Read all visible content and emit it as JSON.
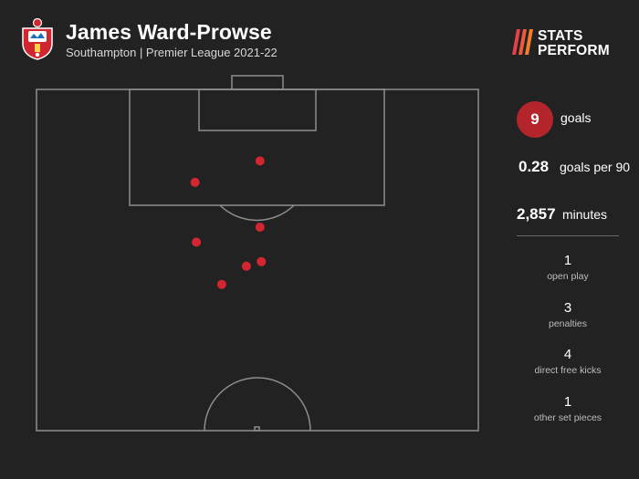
{
  "header": {
    "player_name": "James Ward-Prowse",
    "subtitle": "Southampton | Premier League 2021-22",
    "brand_line1": "STATS",
    "brand_line2": "PERFORM"
  },
  "stats": {
    "goals_value": "9",
    "goals_label": "goals",
    "per90_value": "0.28",
    "per90_label": "goals per 90",
    "minutes_value": "2,857",
    "minutes_label": "minutes"
  },
  "breakdown": [
    {
      "count": "1",
      "label": "open play"
    },
    {
      "count": "3",
      "label": "penalties"
    },
    {
      "count": "4",
      "label": "direct free kicks"
    },
    {
      "count": "1",
      "label": "other set pieces"
    }
  ],
  "colors": {
    "background": "#232222",
    "accent": "#b3242b",
    "shot_dot": "#d42630",
    "pitch_line": "#8e8e8e"
  },
  "chart_data": {
    "type": "scatter",
    "pitch": {
      "width_m": 68,
      "length_m": 52.5,
      "orientation": "attacking-up"
    },
    "x_axis": "pitch width in metres from left touchline",
    "y_axis": "distance from goal line in metres",
    "points": [
      {
        "x": 34.4,
        "y": 11.0
      },
      {
        "x": 24.4,
        "y": 14.3
      },
      {
        "x": 34.4,
        "y": 21.2
      },
      {
        "x": 24.6,
        "y": 23.5
      },
      {
        "x": 34.6,
        "y": 26.5
      },
      {
        "x": 32.3,
        "y": 27.2
      },
      {
        "x": 28.5,
        "y": 30.0
      }
    ]
  }
}
